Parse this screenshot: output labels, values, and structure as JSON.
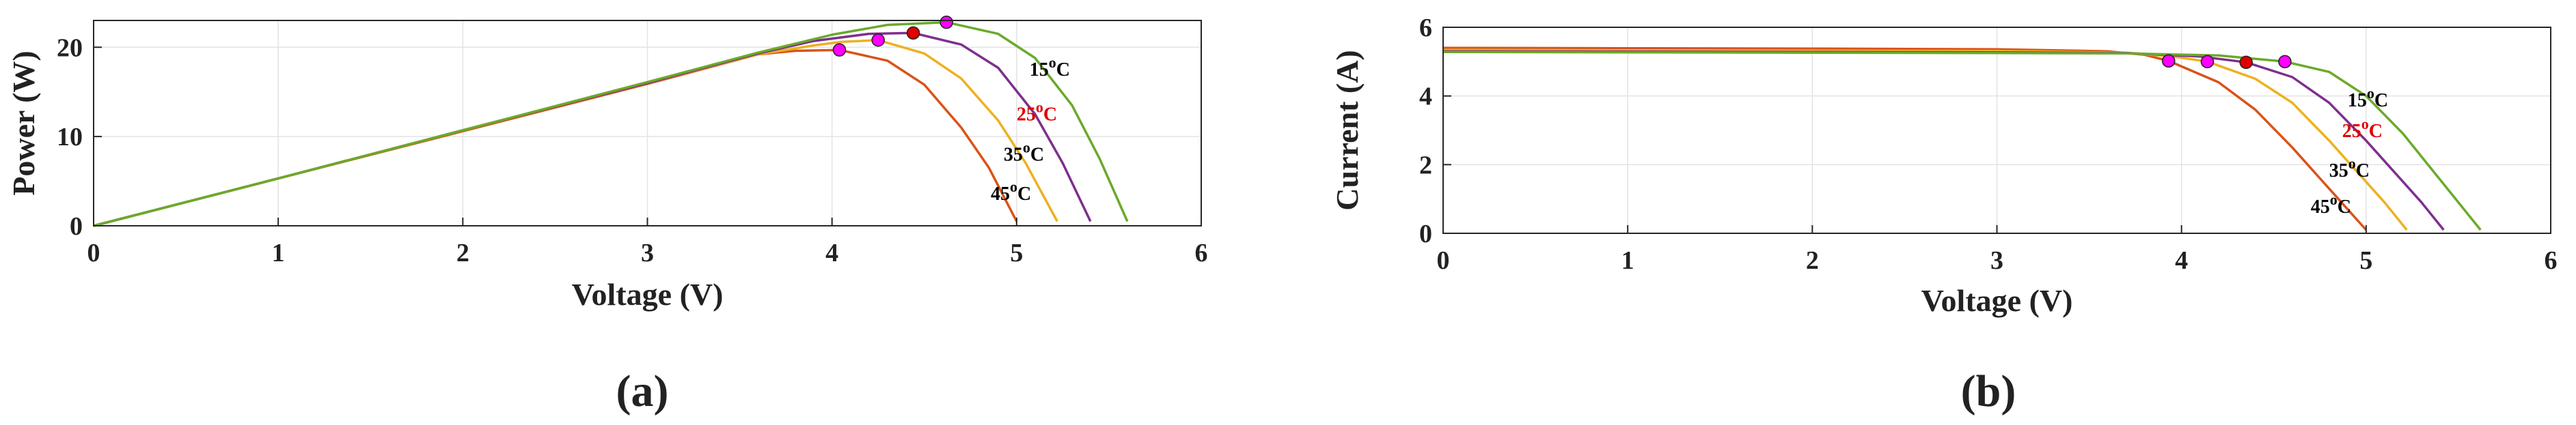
{
  "chart_data": [
    {
      "type": "line",
      "panel_label": "(a)",
      "xlabel": "Voltage (V)",
      "ylabel": "Power (W)",
      "xlim": [
        0,
        6
      ],
      "ylim": [
        0,
        23
      ],
      "xticks": [
        0,
        1,
        2,
        3,
        4,
        5,
        6
      ],
      "yticks": [
        0,
        10,
        20
      ],
      "xtick_labels": [
        "0",
        "1",
        "2",
        "3",
        "4",
        "5",
        "6"
      ],
      "ytick_labels": [
        "0",
        "10",
        "20"
      ],
      "grid": true,
      "series": [
        {
          "name": "15",
          "label_color": "#000000",
          "color": "#6aaa2a",
          "x": [
            0,
            1,
            2,
            3,
            3.6,
            4.0,
            4.3,
            4.62,
            4.9,
            5.1,
            5.3,
            5.45,
            5.6
          ],
          "y": [
            0,
            5.3,
            10.7,
            16.1,
            19.4,
            21.4,
            22.5,
            22.8,
            21.5,
            18.8,
            13.5,
            7.5,
            0.5
          ],
          "mpp": {
            "x": 4.62,
            "y": 22.8,
            "color": "#ff00ff"
          }
        },
        {
          "name": "25",
          "label_color": "#e00000",
          "color": "#7e2f8e",
          "x": [
            0,
            1,
            2,
            3,
            3.6,
            3.9,
            4.2,
            4.44,
            4.7,
            4.9,
            5.1,
            5.25,
            5.4
          ],
          "y": [
            0,
            5.3,
            10.7,
            16.0,
            19.3,
            20.7,
            21.5,
            21.6,
            20.3,
            17.7,
            12.5,
            7.0,
            0.5
          ],
          "mpp": {
            "x": 4.44,
            "y": 21.6,
            "color": "#e00000"
          }
        },
        {
          "name": "35",
          "label_color": "#000000",
          "color": "#edb120",
          "x": [
            0,
            1,
            2,
            3,
            3.6,
            3.9,
            4.05,
            4.25,
            4.5,
            4.7,
            4.9,
            5.05,
            5.22
          ],
          "y": [
            0,
            5.3,
            10.7,
            16.0,
            19.2,
            20.2,
            20.6,
            20.8,
            19.3,
            16.5,
            11.8,
            7.0,
            0.5
          ],
          "mpp": {
            "x": 4.25,
            "y": 20.8,
            "color": "#ff00ff"
          }
        },
        {
          "name": "45",
          "label_color": "#000000",
          "color": "#d95319",
          "x": [
            0,
            1,
            2,
            3,
            3.6,
            3.8,
            4.04,
            4.3,
            4.5,
            4.7,
            4.85,
            5.0
          ],
          "y": [
            0,
            5.3,
            10.6,
            15.9,
            19.2,
            19.6,
            19.7,
            18.5,
            15.8,
            11.0,
            6.5,
            0.5
          ],
          "mpp": {
            "x": 4.04,
            "y": 19.7,
            "color": "#ff00ff"
          }
        }
      ],
      "annotations": [
        {
          "series": "15",
          "base": "15",
          "sup": "o",
          "unit": "C",
          "x": 5.07,
          "y": 16.8,
          "color": "#000000"
        },
        {
          "series": "25",
          "base": "25",
          "sup": "o",
          "unit": "C",
          "x": 5.0,
          "y": 11.8,
          "color": "#e00000"
        },
        {
          "series": "35",
          "base": "35",
          "sup": "o",
          "unit": "C",
          "x": 4.93,
          "y": 7.3,
          "color": "#000000"
        },
        {
          "series": "45",
          "base": "45",
          "sup": "o",
          "unit": "C",
          "x": 4.86,
          "y": 2.9,
          "color": "#000000"
        }
      ]
    },
    {
      "type": "line",
      "panel_label": "(b)",
      "xlabel": "Voltage (V)",
      "ylabel": "Current (A)",
      "xlim": [
        0,
        6
      ],
      "ylim": [
        0,
        6
      ],
      "xticks": [
        0,
        1,
        2,
        3,
        4,
        5,
        6
      ],
      "yticks": [
        0,
        2,
        4,
        6
      ],
      "xtick_labels": [
        "0",
        "1",
        "2",
        "3",
        "4",
        "5",
        "6"
      ],
      "ytick_labels": [
        "0",
        "2",
        "4",
        "6"
      ],
      "grid": true,
      "series": [
        {
          "name": "15",
          "label_color": "#000000",
          "color": "#6aaa2a",
          "x": [
            0,
            1,
            2,
            3,
            3.7,
            4.2,
            4.56,
            4.8,
            5.0,
            5.2,
            5.35,
            5.5,
            5.62
          ],
          "y": [
            5.28,
            5.27,
            5.26,
            5.25,
            5.24,
            5.18,
            5.0,
            4.7,
            4.0,
            2.9,
            1.9,
            0.9,
            0.1
          ],
          "mpp": {
            "x": 4.56,
            "y": 5.0,
            "color": "#ff00ff"
          }
        },
        {
          "name": "25",
          "label_color": "#e00000",
          "color": "#7e2f8e",
          "x": [
            0,
            1,
            2,
            3,
            3.7,
            4.1,
            4.35,
            4.6,
            4.8,
            5.0,
            5.15,
            5.3,
            5.42
          ],
          "y": [
            5.3,
            5.29,
            5.28,
            5.27,
            5.25,
            5.15,
            4.98,
            4.55,
            3.8,
            2.7,
            1.8,
            0.9,
            0.1
          ],
          "mpp": {
            "x": 4.35,
            "y": 4.98,
            "color": "#e00000"
          }
        },
        {
          "name": "35",
          "label_color": "#000000",
          "color": "#edb120",
          "x": [
            0,
            1,
            2,
            3,
            3.7,
            3.95,
            4.14,
            4.4,
            4.6,
            4.8,
            4.95,
            5.1,
            5.22
          ],
          "y": [
            5.34,
            5.33,
            5.32,
            5.31,
            5.26,
            5.15,
            5.0,
            4.5,
            3.8,
            2.7,
            1.8,
            0.9,
            0.1
          ],
          "mpp": {
            "x": 4.14,
            "y": 5.0,
            "color": "#ff00ff"
          }
        },
        {
          "name": "45",
          "label_color": "#000000",
          "color": "#d95319",
          "x": [
            0,
            1,
            2,
            3,
            3.6,
            3.8,
            3.93,
            4.2,
            4.4,
            4.6,
            4.75,
            4.9,
            5.0
          ],
          "y": [
            5.4,
            5.39,
            5.38,
            5.36,
            5.3,
            5.2,
            5.02,
            4.4,
            3.6,
            2.5,
            1.6,
            0.7,
            0.1
          ],
          "mpp": {
            "x": 3.93,
            "y": 5.02,
            "color": "#ff00ff"
          }
        }
      ],
      "annotations": [
        {
          "series": "15",
          "base": "15",
          "sup": "o",
          "unit": "C",
          "x": 4.9,
          "y": 3.7,
          "color": "#000000"
        },
        {
          "series": "25",
          "base": "25",
          "sup": "o",
          "unit": "C",
          "x": 4.87,
          "y": 2.8,
          "color": "#e00000"
        },
        {
          "series": "35",
          "base": "35",
          "sup": "o",
          "unit": "C",
          "x": 4.8,
          "y": 1.65,
          "color": "#000000"
        },
        {
          "series": "45",
          "base": "45",
          "sup": "o",
          "unit": "C",
          "x": 4.7,
          "y": 0.6,
          "color": "#000000"
        }
      ]
    }
  ]
}
